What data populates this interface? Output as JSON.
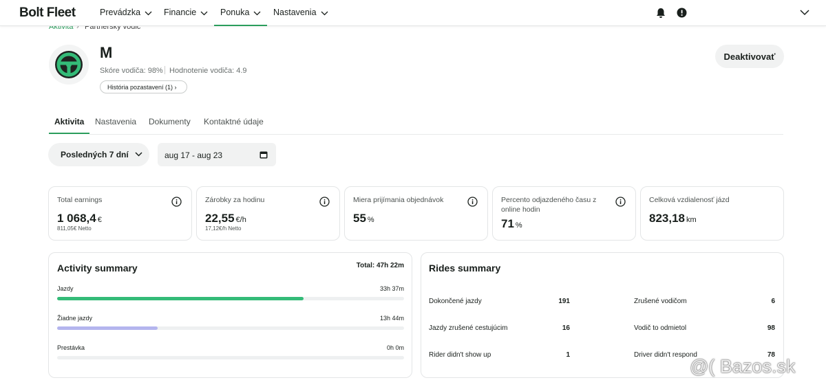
{
  "nav": {
    "brand": "Bolt Fleet",
    "items": [
      "Prevádzka",
      "Financie",
      "Ponuka",
      "Nastavenia"
    ]
  },
  "breadcrumb": [
    "Aktivita",
    "Partnerský vodič"
  ],
  "driver": {
    "name": "M",
    "score": "Skóre vodiča: 98%",
    "rating": "Hodnotenie vodiča: 4.9",
    "history": "História pozastavení (1)",
    "deactivate": "Deaktivovať"
  },
  "tabs": [
    "Aktivita",
    "Nastavenia",
    "Dokumenty",
    "Kontaktné údaje"
  ],
  "filters": {
    "period": "Posledných 7 dní",
    "range": "aug 17 - aug 23"
  },
  "cards": [
    {
      "title": "Total earnings",
      "value": "1 068,4",
      "unit": "€",
      "sub": "811,05€ Netto"
    },
    {
      "title": "Zárobky za hodinu",
      "value": "22,55",
      "unit": "€/h",
      "sub": "17,12€/h Netto"
    },
    {
      "title": "Miera prijímania objednávok",
      "value": "55",
      "unit": "%"
    },
    {
      "title": "Percento odjazdeného času z online hodin",
      "value": "71",
      "unit": "%"
    },
    {
      "title": "Celková vzdialenosť jázd",
      "value": "823,18",
      "unit": "km"
    }
  ],
  "activity": {
    "title": "Activity summary",
    "total": "Total: 47h 22m",
    "rows": [
      {
        "label": "Jazdy",
        "time": "33h 37m",
        "color": "#34bb78"
      },
      {
        "label": "Žiadne jazdy",
        "time": "13h 44m",
        "color": "#b4b5ee"
      },
      {
        "label": "Prestávka",
        "time": "0h 0m",
        "color": "#9aa0a6"
      }
    ]
  },
  "rides": {
    "title": "Rides summary",
    "rows": [
      {
        "label": "Dokončené jazdy",
        "value": 191
      },
      {
        "label": "Zrušené vodičom",
        "value": 6
      },
      {
        "label": "Jazdy zrušené cestujúcim",
        "value": 16
      },
      {
        "label": "Vodič to odmietol",
        "value": 98
      },
      {
        "label": "Rider didn't show up",
        "value": 1
      },
      {
        "label": "Driver didn't respond",
        "value": 78
      }
    ]
  },
  "watermark": "Bazos.sk"
}
